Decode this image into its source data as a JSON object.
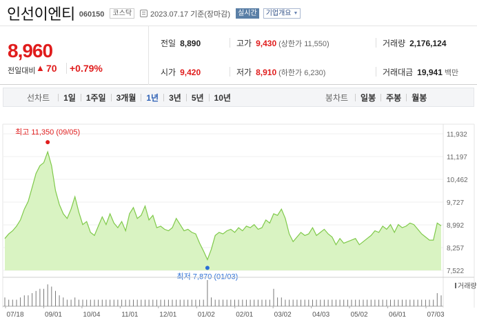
{
  "header": {
    "name": "인선이엔티",
    "code": "060150",
    "market_badge": "코스닥",
    "date": "2023.07.17 기준(장마감)",
    "live_badge": "실시간",
    "corp_overview": "기업개요"
  },
  "price": {
    "current": "8,960",
    "change_label": "전일대비",
    "change_value": "70",
    "change_pct": "+0.79%"
  },
  "stats": {
    "prev_close_label": "전일",
    "prev_close": "8,890",
    "high_label": "고가",
    "high": "9,430",
    "upper_limit": "(상한가 11,550)",
    "volume_label": "거래량",
    "volume": "2,176,124",
    "open_label": "시가",
    "open": "9,420",
    "low_label": "저가",
    "low": "8,910",
    "lower_limit": "(하한가 6,230)",
    "turnover_label": "거래대금",
    "turnover": "19,941",
    "turnover_unit": "백만"
  },
  "periods": {
    "line_title": "선차트",
    "line_items": [
      "1일",
      "1주일",
      "3개월",
      "1년",
      "3년",
      "5년",
      "10년"
    ],
    "active": "1년",
    "candle_title": "봉차트",
    "candle_items": [
      "일봉",
      "주봉",
      "월봉"
    ]
  },
  "chart_data": {
    "type": "area",
    "ylim": [
      7522,
      11932
    ],
    "y_ticks": [
      "11,932",
      "11,197",
      "10,462",
      "9,727",
      "8,992",
      "8,257",
      "7,522"
    ],
    "x_ticks": [
      "07/18",
      "09/01",
      "10/04",
      "11/01",
      "12/01",
      "01/02",
      "02/01",
      "03/02",
      "04/03",
      "05/02",
      "06/01",
      "07/03"
    ],
    "high_label": "최고 11,350 (09/05)",
    "low_label": "최저 7,870 (01/03)",
    "volume_label": "거래량",
    "line_color": "#7fc94a",
    "fill_color": "#d9f3c2",
    "high_color": "#e01c1c",
    "low_color": "#2b6fd6",
    "series": [
      {
        "values": [
          8550,
          8700,
          8800,
          8950,
          9150,
          9500,
          9750,
          10200,
          10650,
          10900,
          11000,
          11350,
          10900,
          10100,
          9650,
          9350,
          9200,
          9500,
          9900,
          9400,
          9000,
          9100,
          8750,
          8650,
          8950,
          9250,
          9000,
          9350,
          9050,
          8900,
          9100,
          8800,
          9350,
          9550,
          9200,
          9300,
          9600,
          9150,
          9300,
          8900,
          8950,
          8850,
          8800,
          8900,
          9200,
          9000,
          8800,
          8850,
          8750,
          8700,
          8400,
          8150,
          7870,
          8200,
          8650,
          8750,
          8700,
          8800,
          8850,
          8750,
          8900,
          8800,
          8950,
          8900,
          9000,
          8850,
          8900,
          9150,
          9050,
          9350,
          9300,
          9500,
          9200,
          8700,
          8450,
          8600,
          8750,
          8650,
          8700,
          8900,
          8650,
          8750,
          8850,
          8700,
          8600,
          8350,
          8550,
          8400,
          8450,
          8500,
          8550,
          8350,
          8450,
          8550,
          8650,
          8800,
          8750,
          8950,
          8850,
          9000,
          8750,
          9000,
          8900,
          8950,
          9050,
          9000,
          8850,
          8700,
          8600,
          8500,
          8500,
          9050,
          8960
        ]
      }
    ],
    "volume": [
      4,
      3,
      3,
      3,
      4,
      5,
      5,
      6,
      7,
      8,
      8,
      10,
      9,
      7,
      5,
      4,
      3,
      3,
      4,
      3,
      3,
      3,
      3,
      3,
      3,
      3,
      3,
      3,
      3,
      3,
      3,
      3,
      3,
      3,
      3,
      3,
      3,
      3,
      3,
      3,
      3,
      3,
      3,
      3,
      3,
      3,
      3,
      3,
      3,
      3,
      3,
      3,
      12,
      4,
      3,
      3,
      3,
      3,
      3,
      3,
      3,
      3,
      3,
      3,
      3,
      3,
      3,
      3,
      3,
      8,
      4,
      4,
      3,
      3,
      3,
      3,
      3,
      3,
      3,
      3,
      3,
      3,
      3,
      3,
      3,
      3,
      3,
      3,
      3,
      3,
      3,
      3,
      3,
      3,
      3,
      3,
      3,
      3,
      3,
      3,
      3,
      3,
      3,
      3,
      3,
      3,
      3,
      3,
      3,
      3,
      3,
      6,
      5
    ]
  }
}
